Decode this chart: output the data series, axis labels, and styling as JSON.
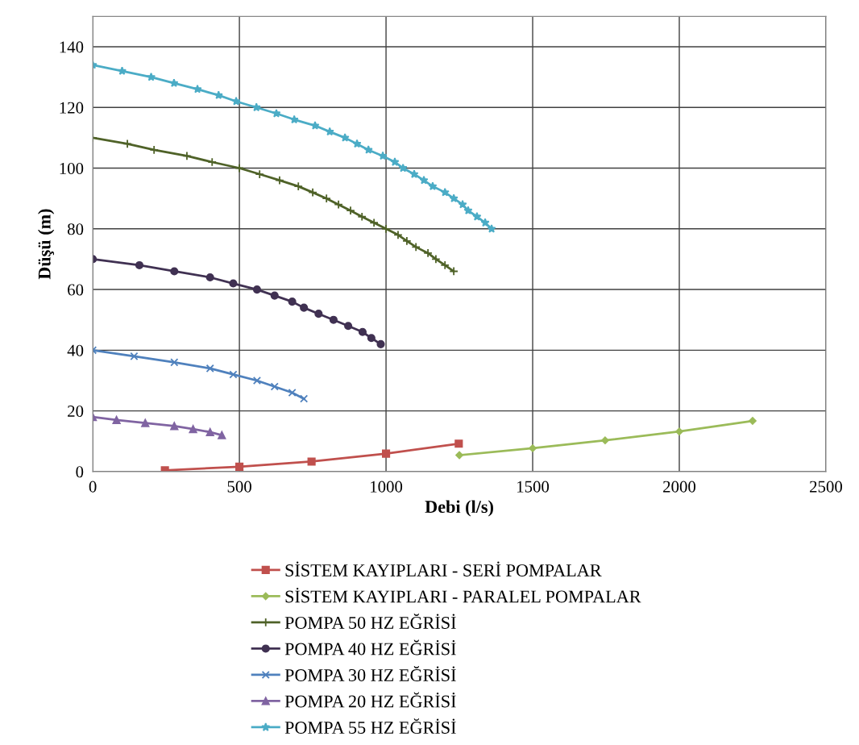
{
  "chart_data": {
    "type": "line",
    "xlabel": "Debi (l/s)",
    "ylabel": "Düşü (m)",
    "xlim": [
      0,
      2500
    ],
    "ylim": [
      0,
      150
    ],
    "xticks": [
      0,
      500,
      1000,
      1500,
      2000,
      2500
    ],
    "yticks": [
      0,
      20,
      40,
      60,
      80,
      100,
      120,
      140
    ],
    "grid": true,
    "legend": "bottom",
    "series": [
      {
        "name": "SİSTEM KAYIPLARI - SERİ POMPALAR",
        "color": "#c0504d",
        "marker": "square",
        "x": [
          246,
          500,
          746,
          1000,
          1248
        ],
        "values": [
          0.4,
          1.6,
          3.3,
          5.9,
          9.2
        ]
      },
      {
        "name": "SİSTEM KAYIPLARI - PARALEL POMPALAR",
        "color": "#9bbb59",
        "marker": "diamond",
        "x": [
          1250,
          1500,
          1747,
          2000,
          2250
        ],
        "values": [
          5.4,
          7.7,
          10.3,
          13.2,
          16.7
        ]
      },
      {
        "name": "POMPA 50 HZ EĞRİSİ",
        "color": "#4f6228",
        "marker": "plus",
        "x": [
          0,
          118,
          209,
          321,
          407,
          500,
          569,
          637,
          701,
          750,
          797,
          838,
          879,
          918,
          959,
          1000,
          1041,
          1071,
          1102,
          1143,
          1170,
          1201,
          1231
        ],
        "values": [
          110,
          108,
          106,
          104,
          102,
          100,
          98,
          96,
          94,
          92,
          90,
          88,
          86,
          84,
          82,
          80,
          78,
          76,
          74,
          72,
          70,
          68,
          66
        ]
      },
      {
        "name": "POMPA 40 HZ EĞRİSİ",
        "color": "#403152",
        "marker": "circle",
        "x": [
          0,
          159,
          278,
          400,
          479,
          560,
          620,
          680,
          720,
          770,
          821,
          871,
          920,
          950,
          982
        ],
        "values": [
          70,
          68,
          66,
          64,
          62,
          60,
          58,
          56,
          54,
          52,
          50,
          48,
          46,
          44,
          42
        ]
      },
      {
        "name": "POMPA 30 HZ EĞRİSİ",
        "color": "#4f81bd",
        "marker": "cross",
        "x": [
          0,
          141,
          278,
          400,
          479,
          560,
          620,
          680,
          720
        ],
        "values": [
          40,
          38,
          36,
          34,
          32,
          30,
          28,
          26,
          24
        ]
      },
      {
        "name": "POMPA 20 HZ EĞRİSİ",
        "color": "#8064a2",
        "marker": "triangle",
        "x": [
          0,
          81,
          179,
          278,
          342,
          400,
          440
        ],
        "values": [
          18,
          17,
          16,
          15,
          14,
          13,
          12
        ]
      },
      {
        "name": "POMPA 55 HZ EĞRİSİ",
        "color": "#4bacc6",
        "marker": "star",
        "x": [
          0,
          100,
          199,
          277,
          357,
          429,
          489,
          558,
          626,
          687,
          758,
          808,
          860,
          901,
          940,
          989,
          1030,
          1058,
          1096,
          1129,
          1159,
          1201,
          1231,
          1261,
          1280,
          1310,
          1338,
          1360
        ],
        "values": [
          134,
          132,
          130,
          128,
          126,
          124,
          122,
          120,
          118,
          116,
          114,
          112,
          110,
          108,
          106,
          104,
          102,
          100,
          98,
          96,
          94,
          92,
          90,
          88,
          86,
          84,
          82,
          80
        ]
      }
    ]
  }
}
